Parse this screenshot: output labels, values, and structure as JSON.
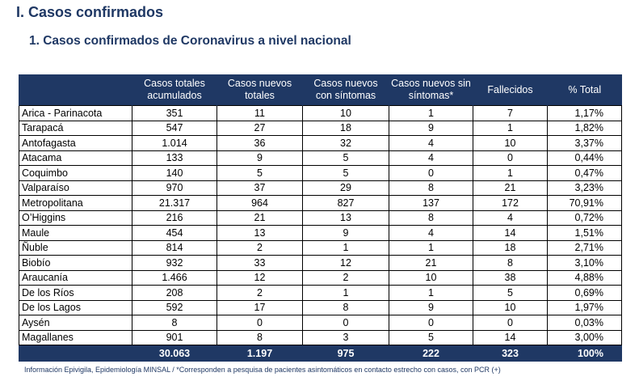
{
  "heading": "I. Casos confirmados",
  "subheading": "1. Casos confirmados de Coronavirus a nivel nacional",
  "columns": [
    "",
    "Casos totales acumulados",
    "Casos nuevos totales",
    "Casos nuevos con síntomas",
    "Casos nuevos sin síntomas*",
    "Fallecidos",
    "% Total"
  ],
  "rows": [
    [
      "Arica - Parinacota",
      "351",
      "11",
      "10",
      "1",
      "7",
      "1,17%"
    ],
    [
      "Tarapacá",
      "547",
      "27",
      "18",
      "9",
      "1",
      "1,82%"
    ],
    [
      "Antofagasta",
      "1.014",
      "36",
      "32",
      "4",
      "10",
      "3,37%"
    ],
    [
      "Atacama",
      "133",
      "9",
      "5",
      "4",
      "0",
      "0,44%"
    ],
    [
      "Coquimbo",
      "140",
      "5",
      "5",
      "0",
      "1",
      "0,47%"
    ],
    [
      "Valparaíso",
      "970",
      "37",
      "29",
      "8",
      "21",
      "3,23%"
    ],
    [
      "Metropolitana",
      "21.317",
      "964",
      "827",
      "137",
      "172",
      "70,91%"
    ],
    [
      "O’Higgins",
      "216",
      "21",
      "13",
      "8",
      "4",
      "0,72%"
    ],
    [
      "Maule",
      "454",
      "13",
      "9",
      "4",
      "14",
      "1,51%"
    ],
    [
      "Ñuble",
      "814",
      "2",
      "1",
      "1",
      "18",
      "2,71%"
    ],
    [
      "Biobío",
      "932",
      "33",
      "12",
      "21",
      "8",
      "3,10%"
    ],
    [
      "Araucanía",
      "1.466",
      "12",
      "2",
      "10",
      "38",
      "4,88%"
    ],
    [
      "De los Ríos",
      "208",
      "2",
      "1",
      "1",
      "5",
      "0,69%"
    ],
    [
      "De los Lagos",
      "592",
      "17",
      "8",
      "9",
      "10",
      "1,97%"
    ],
    [
      "Aysén",
      "8",
      "0",
      "0",
      "0",
      "0",
      "0,03%"
    ],
    [
      "Magallanes",
      "901",
      "8",
      "3",
      "5",
      "14",
      "3,00%"
    ]
  ],
  "total": [
    "",
    "30.063",
    "1.197",
    "975",
    "222",
    "323",
    "100%"
  ],
  "footer": "Información Epivigila, Epidemiología MINSAL / *Corresponden a pesquisa de pacientes asintomáticos en contacto estrecho con casos, con PCR (+)",
  "colors": {
    "header_bg": "#1f3864",
    "heading_text": "#1f3864"
  }
}
